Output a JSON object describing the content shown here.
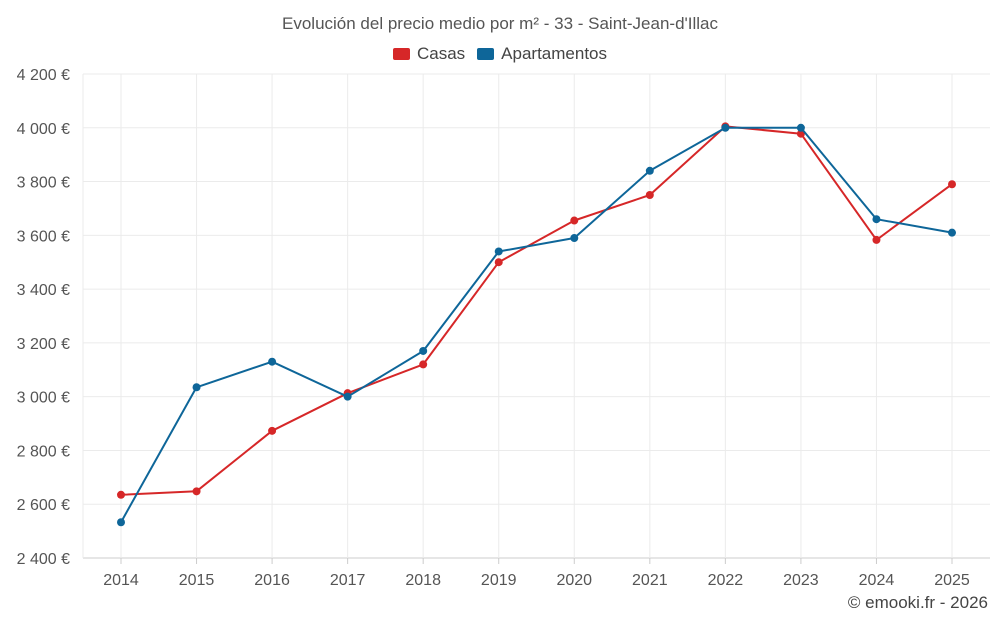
{
  "chart_data": {
    "type": "line",
    "title": "Evolución del precio medio por m² - 33 - Saint-Jean-d'Illac",
    "categories": [
      "2014",
      "2015",
      "2016",
      "2017",
      "2018",
      "2019",
      "2020",
      "2021",
      "2022",
      "2023",
      "2024",
      "2025"
    ],
    "series": [
      {
        "name": "Casas",
        "color": "#d62728",
        "values": [
          2635,
          2648,
          2873,
          3013,
          3120,
          3500,
          3655,
          3750,
          4005,
          3978,
          3583,
          3790
        ]
      },
      {
        "name": "Apartamentos",
        "color": "#0e6699",
        "values": [
          2533,
          3035,
          3130,
          3000,
          3170,
          3540,
          3590,
          3840,
          4000,
          4000,
          3660,
          3610
        ]
      }
    ],
    "ylim": [
      2400,
      4200
    ],
    "yticks": [
      2400,
      2600,
      2800,
      3000,
      3200,
      3400,
      3600,
      3800,
      4000,
      4200
    ],
    "ytick_labels": [
      "2 400 €",
      "2 600 €",
      "2 800 €",
      "3 000 €",
      "3 200 €",
      "3 400 €",
      "3 600 €",
      "3 800 €",
      "4 000 €",
      "4 200 €"
    ],
    "xlabel": "",
    "ylabel": "",
    "grid": true,
    "legend": "top-center"
  },
  "watermark": "© emooki.fr - 2026"
}
